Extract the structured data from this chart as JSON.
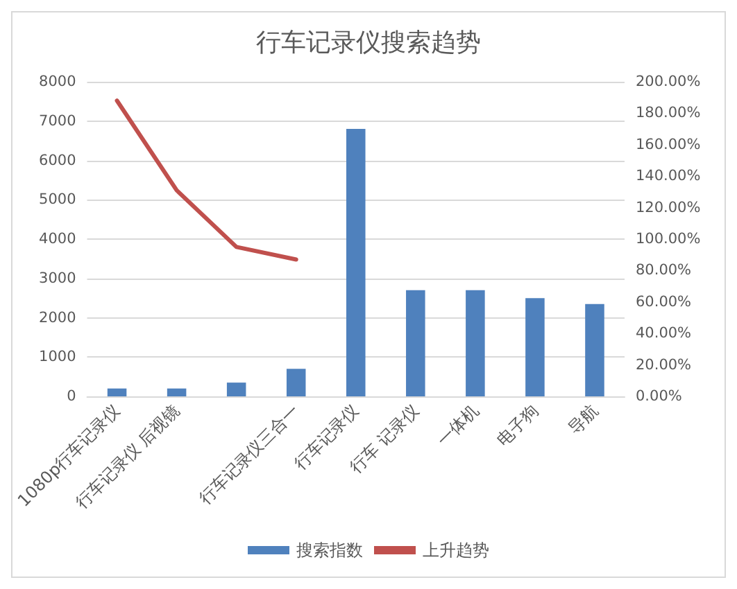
{
  "chart_data": {
    "type": "bar",
    "title": "行车记录仪搜索趋势",
    "categories": [
      "1080p行车记录仪",
      "行车记录仪 后视镜",
      null,
      "行车记录仪三合一",
      "行车记录仪",
      "行车 记录仪",
      "一体机",
      "电子狗",
      "导航"
    ],
    "series": [
      {
        "name": "搜索指数",
        "color": "#4f81bd",
        "values": [
          200,
          200,
          350,
          700,
          6800,
          2700,
          2700,
          2500,
          2350
        ]
      },
      {
        "name": "上升趋势",
        "type": "line",
        "axis": "y2",
        "color": "#c0504d",
        "values": [
          188,
          131,
          95,
          87,
          null,
          null,
          null,
          null,
          null
        ]
      }
    ],
    "ylim": [
      0,
      8000
    ],
    "yticks": [
      0,
      1000,
      2000,
      3000,
      4000,
      5000,
      6000,
      7000,
      8000
    ],
    "y2lim": [
      0,
      200
    ],
    "y2ticks": [
      {
        "value": 0,
        "label": "0.00%"
      },
      {
        "value": 20,
        "label": "20.00%"
      },
      {
        "value": 40,
        "label": "40.00%"
      },
      {
        "value": 60,
        "label": "60.00%"
      },
      {
        "value": 80,
        "label": "80.00%"
      },
      {
        "value": 100,
        "label": "100.00%"
      },
      {
        "value": 120,
        "label": "120.00%"
      },
      {
        "value": 140,
        "label": "140.00%"
      },
      {
        "value": 160,
        "label": "160.00%"
      },
      {
        "value": 180,
        "label": "180.00%"
      },
      {
        "value": 200,
        "label": "200.00%"
      }
    ],
    "grid": "y",
    "legend": "bottom",
    "marker": "none"
  }
}
